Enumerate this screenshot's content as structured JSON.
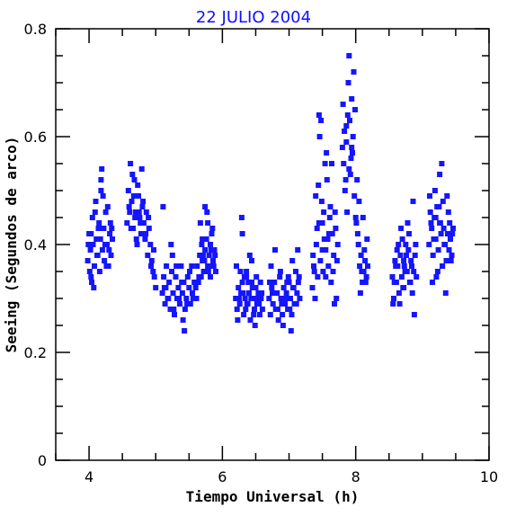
{
  "chart_data": {
    "type": "scatter",
    "title": "22 JULIO 2004",
    "xlabel": "Tiempo Universal (h)",
    "ylabel": "Seeing (Segundos de arco)",
    "xlim": [
      3.5,
      10
    ],
    "ylim": [
      0,
      0.8
    ],
    "xticks": [
      4,
      6,
      8,
      10
    ],
    "xtick_labels": [
      "4",
      "6",
      "8",
      "10"
    ],
    "yticks": [
      0,
      0.2,
      0.4,
      0.6,
      0.8
    ],
    "ytick_labels": [
      "0",
      "0.2",
      "0.4",
      "0.6",
      "0.8"
    ],
    "grid": false,
    "marker_color": "#1515ff",
    "series": [
      {
        "x": [
          3.98,
          4.0,
          4.02,
          4.03,
          4.05,
          4.06,
          4.08,
          4.1,
          4.11,
          4.13,
          4.15,
          4.16,
          4.18,
          4.2,
          4.22,
          4.23,
          4.25,
          4.27,
          4.29,
          4.31,
          4.33,
          4.35,
          3.99,
          4.04,
          4.09,
          4.14,
          4.19,
          4.24,
          4.28,
          4.32,
          4.01,
          4.07,
          4.12,
          4.17,
          4.21,
          4.26,
          4.3,
          4.34,
          4.03,
          4.18,
          4.57,
          4.59,
          4.61,
          4.62,
          4.64,
          4.66,
          4.68,
          4.7,
          4.72,
          4.74,
          4.76,
          4.78,
          4.8,
          4.82,
          4.84,
          4.86,
          4.88,
          4.9,
          4.92,
          4.94,
          4.96,
          4.98,
          5.0,
          4.6,
          4.65,
          4.69,
          4.73,
          4.77,
          4.81,
          4.85,
          4.89,
          4.93,
          4.97,
          4.63,
          4.67,
          4.71,
          4.75,
          4.79,
          5.1,
          5.12,
          5.14,
          5.16,
          5.18,
          5.2,
          5.22,
          5.24,
          5.26,
          5.28,
          5.3,
          5.32,
          5.34,
          5.36,
          5.38,
          5.4,
          5.42,
          5.44,
          5.46,
          5.48,
          5.5,
          5.52,
          5.54,
          5.56,
          5.58,
          5.11,
          5.15,
          5.19,
          5.23,
          5.27,
          5.31,
          5.35,
          5.39,
          5.43,
          5.47,
          5.51,
          5.55,
          5.25,
          5.41,
          5.13,
          5.6,
          5.62,
          5.64,
          5.66,
          5.68,
          5.7,
          5.72,
          5.74,
          5.76,
          5.78,
          5.8,
          5.82,
          5.84,
          5.86,
          5.88,
          5.9,
          5.61,
          5.65,
          5.69,
          5.73,
          5.77,
          5.81,
          5.85,
          5.89,
          5.63,
          5.67,
          5.71,
          5.75,
          5.79,
          5.83,
          5.87,
          5.74,
          5.78,
          5.82,
          5.7,
          6.2,
          6.22,
          6.24,
          6.26,
          6.28,
          6.3,
          6.32,
          6.34,
          6.36,
          6.38,
          6.4,
          6.42,
          6.44,
          6.46,
          6.48,
          6.5,
          6.52,
          6.54,
          6.56,
          6.58,
          6.6,
          6.21,
          6.25,
          6.29,
          6.33,
          6.37,
          6.41,
          6.45,
          6.49,
          6.53,
          6.57,
          6.23,
          6.27,
          6.31,
          6.35,
          6.39,
          6.43,
          6.47,
          6.51,
          6.55,
          6.59,
          6.3,
          6.44,
          6.36,
          6.7,
          6.72,
          6.74,
          6.76,
          6.78,
          6.8,
          6.82,
          6.84,
          6.86,
          6.88,
          6.9,
          6.92,
          6.94,
          6.96,
          6.98,
          7.0,
          7.02,
          7.04,
          7.06,
          7.08,
          7.1,
          7.12,
          7.14,
          7.16,
          6.71,
          6.75,
          6.79,
          6.83,
          6.87,
          6.91,
          6.95,
          6.99,
          7.03,
          7.07,
          7.11,
          7.15,
          6.73,
          6.81,
          6.89,
          6.97,
          7.05,
          7.13,
          7.01,
          7.35,
          7.37,
          7.39,
          7.41,
          7.43,
          7.45,
          7.47,
          7.49,
          7.51,
          7.53,
          7.55,
          7.57,
          7.59,
          7.61,
          7.63,
          7.65,
          7.67,
          7.69,
          7.71,
          7.73,
          7.36,
          7.4,
          7.44,
          7.48,
          7.52,
          7.56,
          7.6,
          7.64,
          7.68,
          7.72,
          7.38,
          7.42,
          7.46,
          7.5,
          7.54,
          7.58,
          7.62,
          7.66,
          7.7,
          7.45,
          7.5,
          7.55,
          7.8,
          7.82,
          7.84,
          7.86,
          7.88,
          7.9,
          7.92,
          7.94,
          7.96,
          7.98,
          8.0,
          8.02,
          8.04,
          8.06,
          8.08,
          8.1,
          8.12,
          8.14,
          8.16,
          8.18,
          7.81,
          7.85,
          7.89,
          7.93,
          7.97,
          8.01,
          8.05,
          8.09,
          8.13,
          8.17,
          7.83,
          7.87,
          7.91,
          7.95,
          7.99,
          8.03,
          8.07,
          8.11,
          8.15,
          7.86,
          7.9,
          7.94,
          8.55,
          8.57,
          8.59,
          8.61,
          8.63,
          8.65,
          8.67,
          8.69,
          8.71,
          8.73,
          8.75,
          8.77,
          8.79,
          8.81,
          8.83,
          8.85,
          8.87,
          8.89,
          8.91,
          8.56,
          8.6,
          8.64,
          8.68,
          8.72,
          8.76,
          8.8,
          8.84,
          8.88,
          8.58,
          8.62,
          8.66,
          8.7,
          8.74,
          8.78,
          8.82,
          8.86,
          8.9,
          8.72,
          8.8,
          9.1,
          9.12,
          9.14,
          9.16,
          9.18,
          9.2,
          9.22,
          9.24,
          9.26,
          9.28,
          9.3,
          9.32,
          9.34,
          9.36,
          9.38,
          9.4,
          9.42,
          9.44,
          9.46,
          9.11,
          9.15,
          9.19,
          9.23,
          9.27,
          9.31,
          9.35,
          9.39,
          9.43,
          9.13,
          9.17,
          9.21,
          9.25,
          9.29,
          9.33,
          9.37,
          9.41,
          9.45,
          9.26,
          9.3,
          9.2
        ],
        "y": [
          0.37,
          0.42,
          0.39,
          0.34,
          0.45,
          0.4,
          0.36,
          0.48,
          0.41,
          0.38,
          0.44,
          0.35,
          0.5,
          0.39,
          0.43,
          0.37,
          0.46,
          0.4,
          0.36,
          0.42,
          0.38,
          0.41,
          0.4,
          0.33,
          0.46,
          0.43,
          0.54,
          0.4,
          0.47,
          0.44,
          0.35,
          0.32,
          0.38,
          0.41,
          0.49,
          0.36,
          0.39,
          0.43,
          0.42,
          0.52,
          0.44,
          0.5,
          0.46,
          0.55,
          0.48,
          0.43,
          0.52,
          0.46,
          0.4,
          0.49,
          0.45,
          0.42,
          0.47,
          0.44,
          0.41,
          0.46,
          0.38,
          0.43,
          0.4,
          0.37,
          0.35,
          0.34,
          0.32,
          0.47,
          0.53,
          0.45,
          0.51,
          0.44,
          0.48,
          0.42,
          0.45,
          0.36,
          0.39,
          0.43,
          0.49,
          0.41,
          0.46,
          0.54,
          0.31,
          0.34,
          0.29,
          0.36,
          0.3,
          0.33,
          0.28,
          0.35,
          0.31,
          0.27,
          0.34,
          0.3,
          0.32,
          0.29,
          0.36,
          0.31,
          0.33,
          0.28,
          0.3,
          0.34,
          0.32,
          0.29,
          0.36,
          0.3,
          0.33,
          0.47,
          0.32,
          0.3,
          0.4,
          0.28,
          0.36,
          0.3,
          0.33,
          0.24,
          0.29,
          0.35,
          0.31,
          0.38,
          0.26,
          0.32,
          0.32,
          0.36,
          0.33,
          0.38,
          0.34,
          0.37,
          0.35,
          0.39,
          0.41,
          0.36,
          0.38,
          0.4,
          0.42,
          0.37,
          0.39,
          0.35,
          0.3,
          0.34,
          0.4,
          0.37,
          0.46,
          0.36,
          0.43,
          0.38,
          0.33,
          0.44,
          0.38,
          0.41,
          0.35,
          0.39,
          0.36,
          0.47,
          0.44,
          0.34,
          0.41,
          0.3,
          0.28,
          0.32,
          0.29,
          0.31,
          0.33,
          0.27,
          0.3,
          0.34,
          0.29,
          0.31,
          0.26,
          0.33,
          0.3,
          0.28,
          0.32,
          0.29,
          0.31,
          0.27,
          0.3,
          0.28,
          0.36,
          0.3,
          0.45,
          0.34,
          0.29,
          0.38,
          0.32,
          0.25,
          0.3,
          0.33,
          0.26,
          0.35,
          0.31,
          0.28,
          0.33,
          0.3,
          0.27,
          0.34,
          0.29,
          0.31,
          0.42,
          0.37,
          0.35,
          0.3,
          0.27,
          0.32,
          0.29,
          0.33,
          0.28,
          0.31,
          0.26,
          0.34,
          0.3,
          0.27,
          0.32,
          0.29,
          0.31,
          0.28,
          0.33,
          0.3,
          0.27,
          0.32,
          0.29,
          0.35,
          0.31,
          0.33,
          0.3,
          0.33,
          0.31,
          0.39,
          0.28,
          0.35,
          0.25,
          0.3,
          0.34,
          0.24,
          0.32,
          0.29,
          0.34,
          0.36,
          0.31,
          0.29,
          0.33,
          0.37,
          0.39,
          0.28,
          0.32,
          0.36,
          0.3,
          0.4,
          0.34,
          0.44,
          0.37,
          0.48,
          0.35,
          0.41,
          0.39,
          0.52,
          0.36,
          0.45,
          0.33,
          0.42,
          0.38,
          0.46,
          0.3,
          0.4,
          0.38,
          0.49,
          0.51,
          0.63,
          0.46,
          0.57,
          0.42,
          0.55,
          0.29,
          0.37,
          0.35,
          0.43,
          0.6,
          0.44,
          0.55,
          0.41,
          0.47,
          0.35,
          0.43,
          0.64,
          0.39,
          0.34,
          0.58,
          0.55,
          0.5,
          0.62,
          0.64,
          0.75,
          0.53,
          0.58,
          0.6,
          0.49,
          0.45,
          0.52,
          0.4,
          0.36,
          0.38,
          0.33,
          0.35,
          0.37,
          0.34,
          0.36,
          0.66,
          0.52,
          0.7,
          0.56,
          0.72,
          0.44,
          0.48,
          0.35,
          0.39,
          0.41,
          0.61,
          0.46,
          0.63,
          0.57,
          0.65,
          0.42,
          0.31,
          0.45,
          0.33,
          0.59,
          0.54,
          0.67,
          0.34,
          0.3,
          0.37,
          0.33,
          0.36,
          0.31,
          0.38,
          0.34,
          0.32,
          0.36,
          0.4,
          0.35,
          0.39,
          0.33,
          0.37,
          0.31,
          0.35,
          0.38,
          0.34,
          0.29,
          0.36,
          0.4,
          0.43,
          0.32,
          0.38,
          0.42,
          0.36,
          0.27,
          0.33,
          0.39,
          0.29,
          0.41,
          0.35,
          0.44,
          0.33,
          0.48,
          0.4,
          0.37,
          0.42,
          0.4,
          0.46,
          0.43,
          0.38,
          0.45,
          0.41,
          0.47,
          0.39,
          0.44,
          0.42,
          0.36,
          0.43,
          0.4,
          0.37,
          0.42,
          0.39,
          0.41,
          0.38,
          0.43,
          0.49,
          0.33,
          0.5,
          0.35,
          0.44,
          0.48,
          0.31,
          0.46,
          0.37,
          0.44,
          0.41,
          0.34,
          0.47,
          0.55,
          0.4,
          0.49,
          0.44,
          0.42,
          0.53,
          0.36,
          0.45
        ]
      }
    ]
  }
}
